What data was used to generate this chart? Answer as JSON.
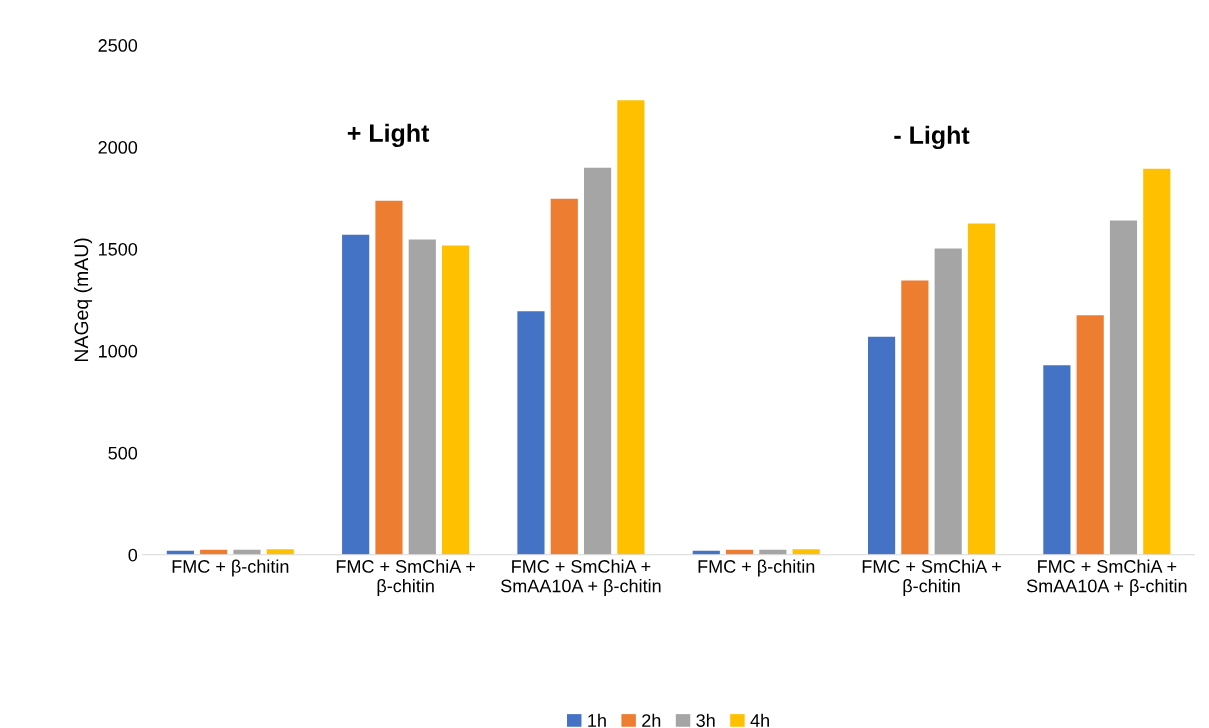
{
  "chart_data": {
    "type": "bar",
    "ylabel": "NAGeq (mAU)",
    "categories": [
      "FMC + β-chitin",
      "FMC + SmChiA + β-chitin",
      "FMC + SmChiA + SmAA10A + β-chitin",
      "FMC + β-chitin",
      "FMC + SmChiA + β-chitin",
      "FMC + SmChiA + SmAA10A + β-chitin"
    ],
    "series": [
      {
        "name": "1h",
        "color": "#4472c4",
        "values": [
          20,
          1570,
          1195,
          20,
          1070,
          930
        ]
      },
      {
        "name": "2h",
        "color": "#ed7d31",
        "values": [
          24,
          1737,
          1747,
          24,
          1345,
          1175
        ]
      },
      {
        "name": "3h",
        "color": "#a5a5a5",
        "values": [
          24,
          1547,
          1898,
          24,
          1502,
          1640
        ]
      },
      {
        "name": "4h",
        "color": "#ffc000",
        "values": [
          27,
          1517,
          2230,
          27,
          1625,
          1893
        ]
      }
    ],
    "ylim": [
      0,
      2500
    ],
    "yticks": [
      0,
      500,
      1000,
      1500,
      2000,
      2500
    ],
    "annotations": [
      "+ Light",
      "- Light"
    ],
    "grid": false,
    "legend": "bottom"
  }
}
